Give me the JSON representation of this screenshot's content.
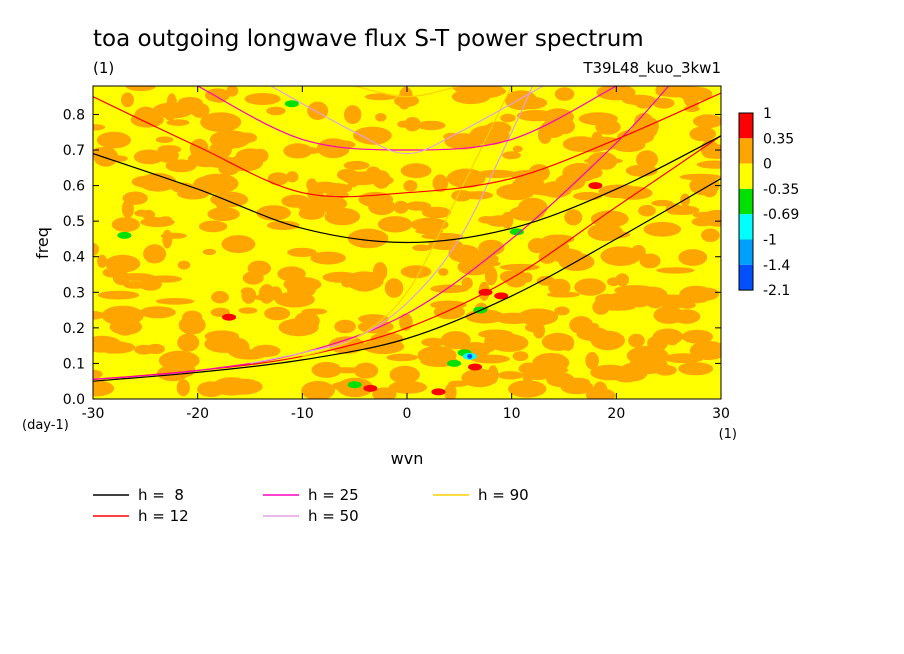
{
  "chart_data": {
    "type": "heatmap",
    "title": "toa outgoing longwave flux S-T power spectrum",
    "subtitle_left": "(1)",
    "subtitle_right": "T39L48_kuo_3kw1",
    "xlabel": "wvn",
    "ylabel": "freq",
    "x_units": "(1)",
    "y_units": "(day-1)",
    "xlim": [
      -30,
      30
    ],
    "ylim": [
      0,
      0.88
    ],
    "x_ticks": [
      "-30",
      "-20",
      "-10",
      "0",
      "10",
      "20",
      "30"
    ],
    "y_ticks": [
      "0.0",
      "0.1",
      "0.2",
      "0.3",
      "0.4",
      "0.5",
      "0.6",
      "0.7",
      "0.8"
    ],
    "colorbar": {
      "levels": [
        "1",
        "0.35",
        "0",
        "-0.35",
        "-0.69",
        "-1",
        "-1.4",
        "-2.1"
      ],
      "colors": [
        "#ff0000",
        "#ffa500",
        "#ffff00",
        "#00e000",
        "#00ffff",
        "#00a0ff",
        "#0050ff"
      ]
    },
    "field_colors": {
      "background": "#ffff00",
      "blobs": "#ffa500"
    },
    "anomalies": [
      {
        "x": 7.5,
        "y": 0.3,
        "color": "#ff0000"
      },
      {
        "x": 9,
        "y": 0.29,
        "color": "#ff0000"
      },
      {
        "x": 6.5,
        "y": 0.09,
        "color": "#ff0000"
      },
      {
        "x": 3,
        "y": 0.02,
        "color": "#ff0000"
      },
      {
        "x": -3.5,
        "y": 0.03,
        "color": "#ff0000"
      },
      {
        "x": -17,
        "y": 0.23,
        "color": "#ff0000"
      },
      {
        "x": 18,
        "y": 0.6,
        "color": "#ff0000"
      },
      {
        "x": 10.5,
        "y": 0.47,
        "color": "#00e000"
      },
      {
        "x": 7,
        "y": 0.25,
        "color": "#00e000"
      },
      {
        "x": 5.5,
        "y": 0.13,
        "color": "#00e000"
      },
      {
        "x": 4.5,
        "y": 0.1,
        "color": "#00e000"
      },
      {
        "x": -5,
        "y": 0.04,
        "color": "#00e000"
      },
      {
        "x": -11,
        "y": 0.83,
        "color": "#00e000"
      },
      {
        "x": -27,
        "y": 0.46,
        "color": "#00e000"
      },
      {
        "x": 6,
        "y": 0.12,
        "color": "#00ffff"
      },
      {
        "x": 6,
        "y": 0.12,
        "color": "#0050ff"
      }
    ],
    "curves_note": "dispersion curves freq(k) for equivalent depths h",
    "series": [
      {
        "name": "Kelvin h=8",
        "h": "8",
        "color": "#000000",
        "x": [
          -30,
          -20,
          -10,
          0,
          10,
          20,
          30
        ],
        "values": [
          0.05,
          0.075,
          0.11,
          0.17,
          0.29,
          0.45,
          0.62
        ]
      },
      {
        "name": "Kelvin h=12",
        "h": "12",
        "color": "#ff0000",
        "x": [
          -30,
          -20,
          -10,
          0,
          10,
          20,
          30
        ],
        "values": [
          0.055,
          0.08,
          0.12,
          0.2,
          0.34,
          0.54,
          0.74
        ]
      },
      {
        "name": "Kelvin h=25",
        "h": "25",
        "color": "#ff00c0",
        "x": [
          -30,
          -20,
          -10,
          0,
          10,
          20,
          25
        ],
        "values": [
          0.055,
          0.08,
          0.13,
          0.24,
          0.45,
          0.72,
          0.88
        ]
      },
      {
        "name": "Kelvin h=50",
        "h": "50",
        "color": "#e0a0e0",
        "x": [
          -15,
          -10,
          -5,
          0,
          5,
          10,
          12
        ],
        "values": [
          0.1,
          0.13,
          0.17,
          0.27,
          0.45,
          0.75,
          0.88
        ]
      },
      {
        "name": "Kelvin h=90",
        "h": "90",
        "color": "#ffd000",
        "x": [
          -10,
          -5,
          0,
          5,
          10
        ],
        "values": [
          0.12,
          0.17,
          0.3,
          0.58,
          0.88
        ]
      },
      {
        "name": "IG h=8",
        "h": "8",
        "color": "#000000",
        "x": [
          -30,
          -20,
          -10,
          0,
          10,
          20,
          30
        ],
        "values": [
          0.69,
          0.59,
          0.48,
          0.44,
          0.48,
          0.59,
          0.74
        ]
      },
      {
        "name": "IG h=12",
        "h": "12",
        "color": "#ff0000",
        "x": [
          -30,
          -20,
          -10,
          0,
          10,
          20,
          30
        ],
        "values": [
          0.85,
          0.71,
          0.58,
          0.58,
          0.62,
          0.73,
          0.86
        ]
      },
      {
        "name": "IG h=25",
        "h": "25",
        "color": "#ff00c0",
        "x": [
          -20,
          -10,
          0,
          10,
          20
        ],
        "values": [
          0.88,
          0.73,
          0.7,
          0.73,
          0.88
        ]
      },
      {
        "name": "IG h=50",
        "h": "50",
        "color": "#e0a0e0",
        "x": [
          -13,
          -5,
          0,
          5,
          13
        ],
        "values": [
          0.88,
          0.75,
          0.69,
          0.75,
          0.88
        ]
      },
      {
        "name": "IG h=90",
        "h": "90",
        "color": "#ffd000",
        "x": [
          -5,
          0,
          5
        ],
        "values": [
          0.88,
          0.85,
          0.88
        ]
      }
    ],
    "legend": {
      "placement": "bottom",
      "entries": [
        {
          "label": "h =  8",
          "color": "#000000"
        },
        {
          "label": "h = 12",
          "color": "#ff0000"
        },
        {
          "label": "h = 25",
          "color": "#ff00c0"
        },
        {
          "label": "h = 50",
          "color": "#e0a0e0"
        },
        {
          "label": "h = 90",
          "color": "#ffd000"
        }
      ]
    }
  }
}
